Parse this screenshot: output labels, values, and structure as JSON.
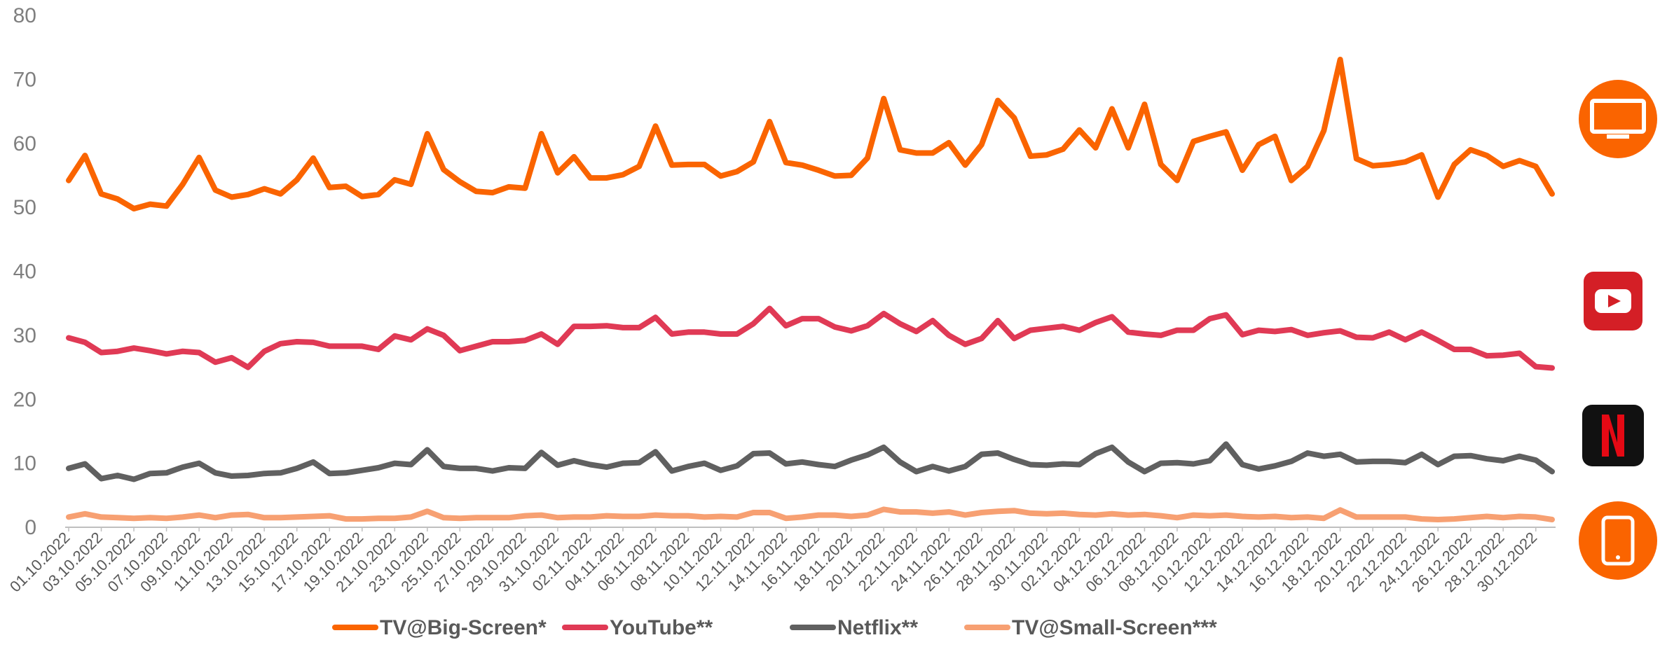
{
  "chart_data": {
    "type": "line",
    "ylim": [
      0,
      80
    ],
    "yticks": [
      "0",
      "10",
      "20",
      "30",
      "40",
      "50",
      "60",
      "70",
      "80"
    ],
    "grid": false,
    "legend_position": "bottom",
    "x_tick_labels": [
      "01.10.2022",
      "03.10.2022",
      "05.10.2022",
      "07.10.2022",
      "09.10.2022",
      "11.10.2022",
      "13.10.2022",
      "15.10.2022",
      "17.10.2022",
      "19.10.2022",
      "21.10.2022",
      "23.10.2022",
      "25.10.2022",
      "27.10.2022",
      "29.10.2022",
      "31.10.2022",
      "02.11.2022",
      "04.11.2022",
      "06.11.2022",
      "08.11.2022",
      "10.11.2022",
      "12.11.2022",
      "14.11.2022",
      "16.11.2022",
      "18.11.2022",
      "20.11.2022",
      "22.11.2022",
      "24.11.2022",
      "26.11.2022",
      "28.11.2022",
      "30.11.2022",
      "02.12.2022",
      "04.12.2022",
      "06.12.2022",
      "08.12.2022",
      "10.12.2022",
      "12.12.2022",
      "14.12.2022",
      "16.12.2022",
      "18.12.2022",
      "20.12.2022",
      "22.12.2022",
      "24.12.2022",
      "26.12.2022",
      "28.12.2022",
      "30.12.2022"
    ],
    "series": [
      {
        "name": "TV@Big-Screen*",
        "color": "#fa6400",
        "icon": "tv-icon",
        "values": [
          54.2,
          58.1,
          52.1,
          51.3,
          49.8,
          50.5,
          50.2,
          53.6,
          57.8,
          52.7,
          51.6,
          52.0,
          52.9,
          52.1,
          54.3,
          57.7,
          53.1,
          53.3,
          51.7,
          52.0,
          54.3,
          53.6,
          61.5,
          55.9,
          54.0,
          52.5,
          52.3,
          53.2,
          53.0,
          61.5,
          55.4,
          57.9,
          54.6,
          54.6,
          55.1,
          56.4,
          62.7,
          56.6,
          56.7,
          56.7,
          54.9,
          55.6,
          57.1,
          63.4,
          57.0,
          56.6,
          55.8,
          54.9,
          55.0,
          57.7,
          67.0,
          59.0,
          58.5,
          58.5,
          60.1,
          56.6,
          59.8,
          66.7,
          64.0,
          58.0,
          58.2,
          59.1,
          62.1,
          59.3,
          65.4,
          59.3,
          66.1,
          56.7,
          54.2,
          60.3,
          61.1,
          61.8,
          55.8,
          59.8,
          61.1,
          54.2,
          56.4,
          62.0,
          73.1,
          57.6,
          56.5,
          56.7,
          57.1,
          58.2,
          51.6,
          56.7,
          59.0,
          58.1,
          56.4,
          57.3,
          56.4,
          52.1
        ]
      },
      {
        "name": "YouTube**",
        "color": "#e03a55",
        "icon": "youtube-icon",
        "values": [
          29.6,
          28.9,
          27.3,
          27.5,
          28.0,
          27.6,
          27.1,
          27.5,
          27.3,
          25.8,
          26.5,
          25.0,
          27.5,
          28.7,
          29.0,
          28.9,
          28.3,
          28.3,
          28.3,
          27.8,
          29.9,
          29.3,
          31.0,
          30.0,
          27.6,
          28.3,
          29.0,
          29.0,
          29.2,
          30.2,
          28.6,
          31.4,
          31.4,
          31.5,
          31.2,
          31.2,
          32.8,
          30.2,
          30.5,
          30.5,
          30.2,
          30.2,
          31.8,
          34.2,
          31.5,
          32.6,
          32.6,
          31.3,
          30.7,
          31.5,
          33.4,
          31.8,
          30.6,
          32.3,
          30.0,
          28.6,
          29.5,
          32.3,
          29.5,
          30.8,
          31.1,
          31.4,
          30.8,
          32.0,
          32.9,
          30.5,
          30.2,
          30.0,
          30.8,
          30.8,
          32.6,
          33.2,
          30.1,
          30.8,
          30.6,
          30.9,
          30.0,
          30.4,
          30.7,
          29.7,
          29.6,
          30.5,
          29.3,
          30.5,
          29.2,
          27.8,
          27.8,
          26.8,
          26.9,
          27.2,
          25.1,
          24.9
        ]
      },
      {
        "name": "Netflix**",
        "color": "#606060",
        "icon": "netflix-icon",
        "values": [
          9.2,
          9.9,
          7.6,
          8.1,
          7.5,
          8.4,
          8.5,
          9.4,
          10.0,
          8.5,
          8.0,
          8.1,
          8.4,
          8.5,
          9.2,
          10.2,
          8.4,
          8.5,
          8.9,
          9.3,
          10.0,
          9.8,
          12.1,
          9.5,
          9.2,
          9.2,
          8.8,
          9.3,
          9.2,
          11.7,
          9.7,
          10.4,
          9.8,
          9.4,
          10.0,
          10.1,
          11.8,
          8.8,
          9.5,
          10.0,
          8.9,
          9.6,
          11.5,
          11.6,
          9.9,
          10.2,
          9.8,
          9.5,
          10.5,
          11.3,
          12.5,
          10.2,
          8.7,
          9.5,
          8.8,
          9.5,
          11.4,
          11.6,
          10.6,
          9.8,
          9.7,
          9.9,
          9.8,
          11.5,
          12.5,
          10.2,
          8.7,
          10.0,
          10.1,
          9.9,
          10.4,
          13.0,
          9.8,
          9.1,
          9.6,
          10.3,
          11.6,
          11.1,
          11.4,
          10.2,
          10.3,
          10.3,
          10.1,
          11.4,
          9.8,
          11.1,
          11.2,
          10.7,
          10.4,
          11.1,
          10.5,
          8.7
        ]
      },
      {
        "name": "TV@Small-Screen***",
        "color": "#f7a072",
        "icon": "tablet-icon",
        "values": [
          1.6,
          2.1,
          1.6,
          1.5,
          1.4,
          1.5,
          1.4,
          1.6,
          1.9,
          1.5,
          1.9,
          2.0,
          1.5,
          1.5,
          1.6,
          1.7,
          1.8,
          1.3,
          1.3,
          1.4,
          1.4,
          1.6,
          2.5,
          1.5,
          1.4,
          1.5,
          1.5,
          1.5,
          1.8,
          1.9,
          1.5,
          1.6,
          1.6,
          1.8,
          1.7,
          1.7,
          1.9,
          1.8,
          1.8,
          1.6,
          1.7,
          1.6,
          2.3,
          2.3,
          1.4,
          1.6,
          1.9,
          1.9,
          1.7,
          1.9,
          2.8,
          2.4,
          2.4,
          2.2,
          2.4,
          1.9,
          2.3,
          2.5,
          2.6,
          2.2,
          2.1,
          2.2,
          2.0,
          1.9,
          2.1,
          1.9,
          2.0,
          1.8,
          1.5,
          1.9,
          1.8,
          1.9,
          1.7,
          1.6,
          1.7,
          1.5,
          1.6,
          1.4,
          2.7,
          1.6,
          1.6,
          1.6,
          1.6,
          1.3,
          1.2,
          1.3,
          1.5,
          1.7,
          1.5,
          1.7,
          1.6,
          1.2
        ]
      }
    ]
  }
}
